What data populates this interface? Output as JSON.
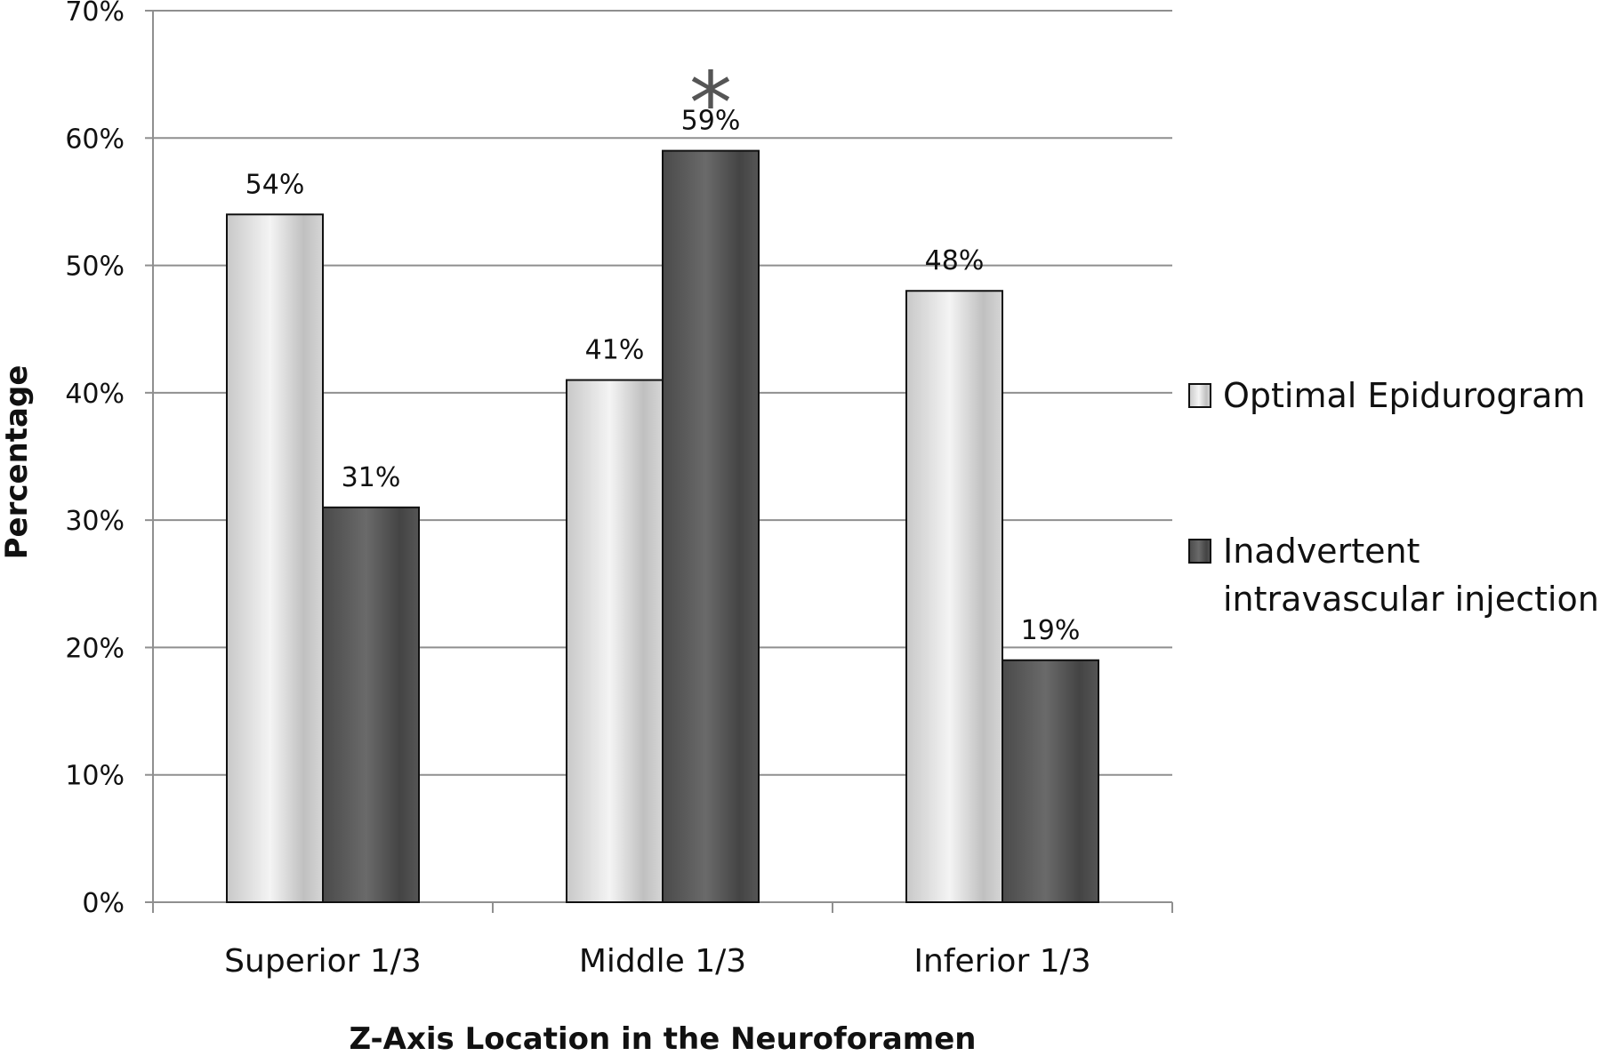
{
  "chart_data": {
    "type": "bar",
    "title": "",
    "xlabel": "Z-Axis Location in the Neuroforamen",
    "ylabel": "Percentage",
    "categories": [
      "Superior 1/3",
      "Middle 1/3",
      "Inferior 1/3"
    ],
    "series": [
      {
        "name": "Optimal Epidurogram",
        "values": [
          54,
          41,
          48
        ],
        "color": "#d4d4d4"
      },
      {
        "name": "Inadvertent intravascular injection",
        "values": [
          31,
          59,
          19
        ],
        "color": "#555555"
      }
    ],
    "ylim": [
      0,
      70
    ],
    "yticks": [
      0,
      10,
      20,
      30,
      40,
      50,
      60,
      70
    ],
    "ytick_labels": [
      "0%",
      "10%",
      "20%",
      "30%",
      "40%",
      "50%",
      "60%",
      "70%"
    ],
    "data_labels": [
      [
        "54%",
        "41%",
        "48%"
      ],
      [
        "31%",
        "59%",
        "19%"
      ]
    ],
    "annotations": [
      {
        "text": "*",
        "category": "Middle 1/3"
      }
    ],
    "grid": true,
    "legend_position": "right"
  }
}
